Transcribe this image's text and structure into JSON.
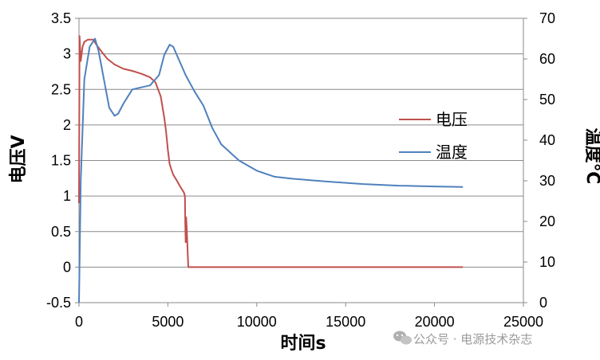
{
  "chart_data": {
    "type": "line",
    "xlabel": "时间s",
    "ylabel_left": "电压V",
    "ylabel_right": "温度℃",
    "xlim": [
      0,
      25000
    ],
    "ylim_left": [
      -0.5,
      3.5
    ],
    "ylim_right": [
      0,
      70
    ],
    "x_ticks": [
      0,
      5000,
      10000,
      15000,
      20000,
      25000
    ],
    "y_left_ticks": [
      -0.5,
      0,
      0.5,
      1,
      1.5,
      2,
      2.5,
      3,
      3.5
    ],
    "y_right_ticks": [
      0,
      10,
      20,
      30,
      40,
      50,
      60,
      70
    ],
    "grid": true,
    "legend_position": "right",
    "series": [
      {
        "name": "电压",
        "axis": "left",
        "color": "#c0504d",
        "x": [
          0,
          30,
          100,
          200,
          300,
          500,
          800,
          1000,
          1300,
          1600,
          2000,
          2500,
          3000,
          3500,
          4000,
          4300,
          4600,
          4800,
          4900,
          5000,
          5100,
          5200,
          5300,
          5500,
          5700,
          5900,
          5960,
          5980,
          6000,
          6030,
          6060,
          6100,
          6150,
          7000,
          10000,
          15000,
          20000,
          21600
        ],
        "values": [
          0.9,
          3.25,
          2.9,
          3.1,
          3.17,
          3.2,
          3.2,
          3.12,
          3.02,
          2.93,
          2.85,
          2.79,
          2.76,
          2.72,
          2.67,
          2.6,
          2.4,
          2.1,
          1.9,
          1.65,
          1.45,
          1.37,
          1.3,
          1.22,
          1.13,
          1.05,
          1.0,
          0.62,
          0.35,
          0.7,
          0.55,
          0.3,
          0.0,
          0.0,
          0.0,
          0.0,
          0.0,
          0.0
        ]
      },
      {
        "name": "温度",
        "axis": "right",
        "color": "#4f81bd",
        "x": [
          0,
          100,
          300,
          600,
          900,
          1100,
          1400,
          1700,
          2000,
          2200,
          2500,
          3000,
          3500,
          4000,
          4500,
          4800,
          5100,
          5300,
          5600,
          6000,
          6500,
          7000,
          7500,
          8000,
          9000,
          10000,
          11000,
          12000,
          14000,
          16000,
          18000,
          20000,
          21600
        ],
        "values": [
          0,
          30,
          55,
          63,
          65,
          62,
          55,
          48,
          46,
          46.5,
          49,
          52.5,
          53,
          53.5,
          56,
          61,
          63.5,
          63,
          60,
          56,
          52,
          48.5,
          43,
          39,
          35,
          32.5,
          31,
          30.5,
          29.8,
          29.2,
          28.8,
          28.6,
          28.5
        ]
      }
    ]
  },
  "watermark": {
    "text": "公众号 · 电源技术杂志",
    "icon": "wechat-icon"
  }
}
